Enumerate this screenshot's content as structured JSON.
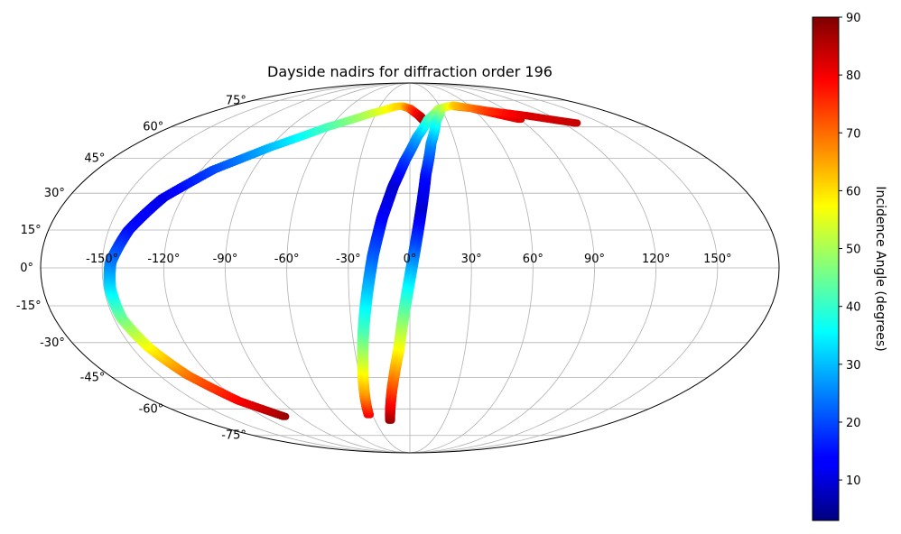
{
  "chart_data": {
    "type": "scatter",
    "projection": "mollweide",
    "title": "Dayside nadirs for diffraction order 196",
    "xlabel": "",
    "ylabel": "",
    "grid": true,
    "lon_ticks": [
      "-150°",
      "-120°",
      "-90°",
      "-60°",
      "-30°",
      "0°",
      "30°",
      "60°",
      "90°",
      "120°",
      "150°"
    ],
    "lat_ticks": [
      "75°",
      "60°",
      "45°",
      "30°",
      "15°",
      "0°",
      "-15°",
      "-30°",
      "-45°",
      "-60°",
      "-75°"
    ],
    "colorbar": {
      "label": "Incidence Angle (degrees)",
      "colormap": "jet",
      "range": [
        3,
        90
      ],
      "ticks": [
        "10",
        "20",
        "30",
        "40",
        "50",
        "60",
        "70",
        "80",
        "90"
      ]
    },
    "series": [
      {
        "points": [
          {
            "lon": -103,
            "lat": -64,
            "inc": 88
          },
          {
            "lon": -120,
            "lat": -56,
            "inc": 80
          },
          {
            "lon": -133,
            "lat": -44,
            "inc": 70
          },
          {
            "lon": -141,
            "lat": -32,
            "inc": 58
          },
          {
            "lon": -146,
            "lat": -20,
            "inc": 46
          },
          {
            "lon": -147,
            "lat": -8,
            "inc": 34
          },
          {
            "lon": -146,
            "lat": 2,
            "inc": 25
          },
          {
            "lon": -140,
            "lat": 15,
            "inc": 15
          },
          {
            "lon": -130,
            "lat": 28,
            "inc": 12
          },
          {
            "lon": -113,
            "lat": 40,
            "inc": 20
          },
          {
            "lon": -90,
            "lat": 50,
            "inc": 30
          },
          {
            "lon": -62,
            "lat": 60,
            "inc": 42
          },
          {
            "lon": -35,
            "lat": 67,
            "inc": 52
          },
          {
            "lon": -15,
            "lat": 71,
            "inc": 60
          },
          {
            "lon": -8,
            "lat": 71.5,
            "inc": 62
          },
          {
            "lon": 0,
            "lat": 70,
            "inc": 72
          },
          {
            "lon": 8,
            "lat": 66,
            "inc": 82
          },
          {
            "lon": 13,
            "lat": 62,
            "inc": 88
          }
        ]
      },
      {
        "points": [
          {
            "lon": -33,
            "lat": -63,
            "inc": 80
          },
          {
            "lon": -30,
            "lat": -52,
            "inc": 66
          },
          {
            "lon": -27,
            "lat": -40,
            "inc": 55
          },
          {
            "lon": -24,
            "lat": -25,
            "inc": 42
          },
          {
            "lon": -21,
            "lat": -10,
            "inc": 32
          },
          {
            "lon": -18,
            "lat": 5,
            "inc": 22
          },
          {
            "lon": -14,
            "lat": 20,
            "inc": 14
          },
          {
            "lon": -9,
            "lat": 33,
            "inc": 10
          },
          {
            "lon": -3,
            "lat": 44,
            "inc": 18
          },
          {
            "lon": 5,
            "lat": 55,
            "inc": 28
          },
          {
            "lon": 15,
            "lat": 64,
            "inc": 40
          },
          {
            "lon": 28,
            "lat": 70,
            "inc": 52
          },
          {
            "lon": 40,
            "lat": 71.5,
            "inc": 62
          },
          {
            "lon": 60,
            "lat": 70,
            "inc": 72
          },
          {
            "lon": 75,
            "lat": 67,
            "inc": 78
          },
          {
            "lon": 90,
            "lat": 64,
            "inc": 82
          }
        ]
      },
      {
        "points": [
          {
            "lon": -17,
            "lat": -66,
            "inc": 88
          },
          {
            "lon": -14,
            "lat": -58,
            "inc": 80
          },
          {
            "lon": -10,
            "lat": -46,
            "inc": 70
          },
          {
            "lon": -6,
            "lat": -33,
            "inc": 58
          },
          {
            "lon": -3,
            "lat": -18,
            "inc": 45
          },
          {
            "lon": 0,
            "lat": -4,
            "inc": 33
          },
          {
            "lon": 3,
            "lat": 10,
            "inc": 20
          },
          {
            "lon": 6,
            "lat": 24,
            "inc": 10
          },
          {
            "lon": 9,
            "lat": 38,
            "inc": 15
          },
          {
            "lon": 14,
            "lat": 52,
            "inc": 26
          },
          {
            "lon": 21,
            "lat": 63,
            "inc": 38
          },
          {
            "lon": 30,
            "lat": 70,
            "inc": 50
          },
          {
            "lon": 45,
            "lat": 72,
            "inc": 62
          },
          {
            "lon": 70,
            "lat": 69,
            "inc": 74
          },
          {
            "lon": 100,
            "lat": 66,
            "inc": 82
          },
          {
            "lon": 130,
            "lat": 62,
            "inc": 84
          }
        ]
      }
    ]
  }
}
